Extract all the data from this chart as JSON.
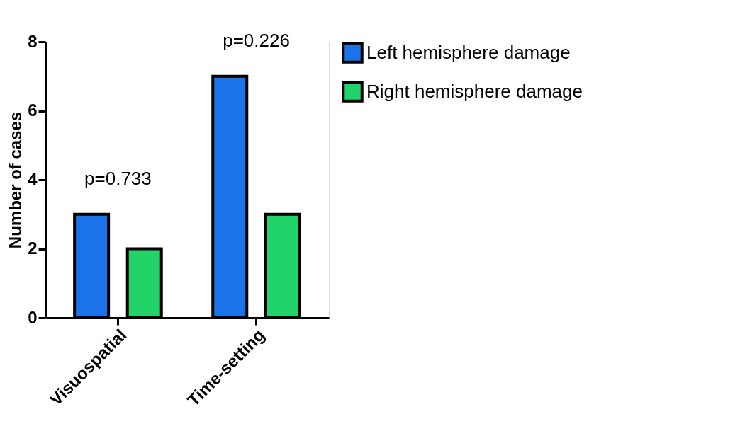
{
  "chart_data": {
    "type": "bar",
    "categories": [
      "Visuospatial",
      "Time-setting"
    ],
    "series": [
      {
        "name": "Left hemisphere damage",
        "color": "#1a73e8",
        "values": [
          3,
          7
        ]
      },
      {
        "name": "Right hemisphere damage",
        "color": "#22d36a",
        "values": [
          2,
          3
        ]
      }
    ],
    "ylabel": "Number of cases",
    "ylim": [
      0,
      8
    ],
    "yticks": [
      0,
      2,
      4,
      6,
      8
    ],
    "grid": false,
    "legend": "top right",
    "annotations": [
      "p=0.733",
      "p=0.226"
    ]
  }
}
